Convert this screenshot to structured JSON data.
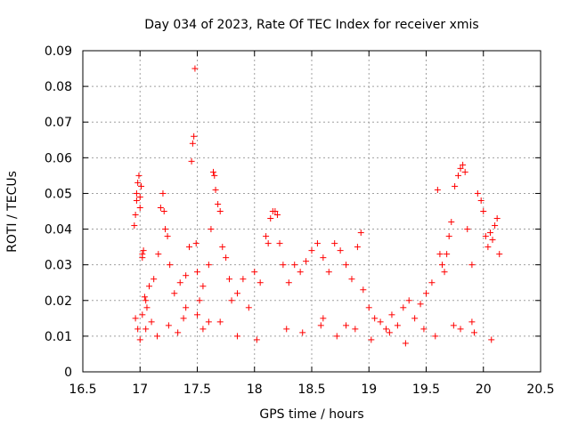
{
  "chart_data": {
    "type": "scatter",
    "title": "Day 034 of 2023, Rate Of TEC Index for receiver xmis",
    "xlabel": "GPS time / hours",
    "ylabel": "ROTI / TECUs",
    "xlim": [
      16.5,
      20.5
    ],
    "ylim": [
      0,
      0.09
    ],
    "xticks": [
      16.5,
      17,
      17.5,
      18,
      18.5,
      19,
      19.5,
      20,
      20.5
    ],
    "xtick_labels": [
      "16.5",
      "17",
      "17.5",
      "18",
      "18.5",
      "19",
      "19.5",
      "20",
      "20.5"
    ],
    "yticks": [
      0,
      0.01,
      0.02,
      0.03,
      0.04,
      0.05,
      0.06,
      0.07,
      0.08,
      0.09
    ],
    "ytick_labels": [
      "0",
      "0.01",
      "0.02",
      "0.03",
      "0.04",
      "0.05",
      "0.06",
      "0.07",
      "0.08",
      "0.09"
    ],
    "grid": true,
    "marker": "+",
    "color": "#ff0000",
    "series": [
      {
        "x": [
          16.95,
          16.96,
          16.97,
          16.97,
          16.98,
          16.99,
          17.0,
          17.0,
          17.01,
          17.02,
          17.02,
          17.03,
          17.05,
          17.06,
          16.96,
          16.98,
          17.0,
          17.02,
          17.04,
          17.08,
          17.12,
          17.16,
          17.18,
          17.2,
          17.21,
          17.22,
          17.24,
          17.26,
          17.3,
          17.35,
          17.4,
          17.43,
          17.45,
          17.46,
          17.47,
          17.48,
          17.49,
          17.5,
          17.52,
          17.55,
          17.6,
          17.62,
          17.64,
          17.65,
          17.66,
          17.68,
          17.7,
          17.72,
          17.75,
          17.78,
          17.8,
          17.85,
          17.9,
          17.95,
          18.0,
          18.05,
          18.1,
          18.12,
          18.14,
          18.16,
          18.18,
          18.2,
          18.22,
          18.25,
          18.3,
          18.35,
          18.4,
          18.45,
          18.5,
          18.55,
          18.6,
          18.65,
          18.7,
          18.75,
          18.8,
          18.85,
          18.9,
          18.93,
          18.95,
          19.0,
          19.05,
          19.1,
          19.15,
          19.2,
          19.25,
          19.3,
          19.35,
          19.4,
          19.45,
          19.5,
          19.55,
          19.6,
          19.62,
          19.64,
          19.66,
          19.68,
          19.7,
          19.72,
          19.75,
          19.78,
          19.8,
          19.82,
          19.84,
          19.86,
          19.9,
          19.95,
          19.98,
          20.0,
          20.02,
          20.04,
          20.06,
          20.08,
          20.1,
          20.12,
          20.14,
          17.05,
          17.1,
          17.15,
          17.25,
          17.33,
          17.38,
          17.55,
          17.7,
          17.85,
          18.02,
          18.28,
          18.42,
          18.58,
          18.72,
          18.88,
          19.02,
          19.18,
          19.32,
          19.48,
          19.58,
          19.74,
          19.92,
          20.07,
          17.4,
          17.5,
          17.6,
          18.6,
          18.8,
          19.8,
          19.9
        ],
        "y": [
          0.041,
          0.044,
          0.048,
          0.05,
          0.053,
          0.055,
          0.049,
          0.046,
          0.052,
          0.033,
          0.032,
          0.034,
          0.02,
          0.018,
          0.015,
          0.012,
          0.009,
          0.016,
          0.021,
          0.024,
          0.026,
          0.033,
          0.046,
          0.05,
          0.045,
          0.04,
          0.038,
          0.03,
          0.022,
          0.025,
          0.027,
          0.035,
          0.059,
          0.064,
          0.066,
          0.085,
          0.036,
          0.028,
          0.02,
          0.024,
          0.03,
          0.04,
          0.056,
          0.055,
          0.051,
          0.047,
          0.045,
          0.035,
          0.032,
          0.026,
          0.02,
          0.022,
          0.026,
          0.018,
          0.028,
          0.025,
          0.038,
          0.036,
          0.043,
          0.045,
          0.045,
          0.044,
          0.036,
          0.03,
          0.025,
          0.03,
          0.028,
          0.031,
          0.034,
          0.036,
          0.032,
          0.028,
          0.036,
          0.034,
          0.03,
          0.026,
          0.035,
          0.039,
          0.023,
          0.018,
          0.015,
          0.014,
          0.012,
          0.016,
          0.013,
          0.018,
          0.02,
          0.015,
          0.019,
          0.022,
          0.025,
          0.051,
          0.033,
          0.03,
          0.028,
          0.033,
          0.038,
          0.042,
          0.052,
          0.055,
          0.057,
          0.058,
          0.056,
          0.04,
          0.03,
          0.05,
          0.048,
          0.045,
          0.038,
          0.035,
          0.039,
          0.037,
          0.041,
          0.043,
          0.033,
          0.012,
          0.014,
          0.01,
          0.013,
          0.011,
          0.015,
          0.012,
          0.014,
          0.01,
          0.009,
          0.012,
          0.011,
          0.013,
          0.01,
          0.012,
          0.009,
          0.011,
          0.008,
          0.012,
          0.01,
          0.013,
          0.011,
          0.009,
          0.018,
          0.016,
          0.014,
          0.015,
          0.013,
          0.012,
          0.014
        ]
      }
    ]
  }
}
